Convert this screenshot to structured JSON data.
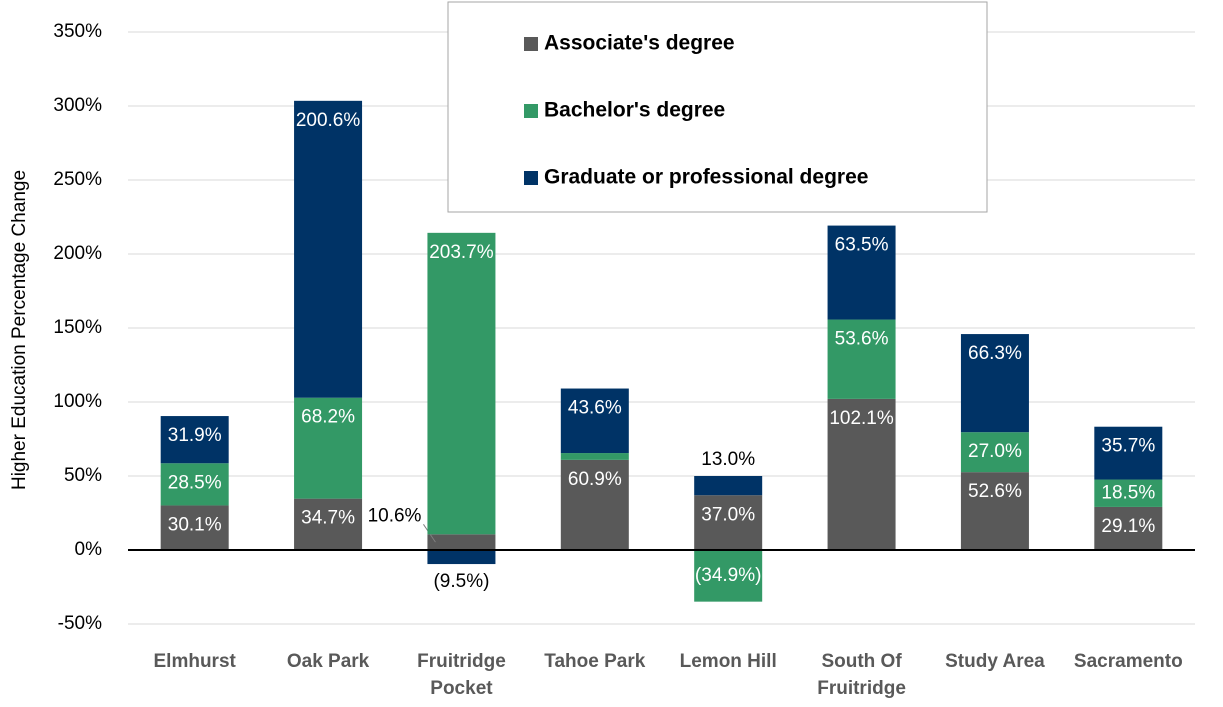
{
  "chart_data": {
    "type": "bar",
    "stacked": true,
    "y_label": "Higher Education Percentage Change",
    "categories": [
      "Elmhurst",
      "Oak Park",
      "Fruitridge Pocket",
      "Tahoe Park",
      "Lemon Hill",
      "South Of Fruitridge",
      "Study Area",
      "Sacramento"
    ],
    "series": [
      {
        "name": "Associate's degree",
        "color": "#595959",
        "values": [
          30.1,
          34.7,
          10.6,
          60.9,
          37.0,
          102.1,
          52.6,
          29.1
        ],
        "value_labels": [
          "30.1%",
          "34.7%",
          "10.6%",
          "60.9%",
          "37.0%",
          "102.1%",
          "52.6%",
          "29.1%"
        ]
      },
      {
        "name": "Bachelor's degree",
        "color": "#339966",
        "values": [
          28.5,
          68.2,
          203.7,
          4.6,
          -34.9,
          53.6,
          27.0,
          18.5
        ],
        "value_labels": [
          "28.5%",
          "68.2%",
          "203.7%",
          null,
          "(34.9%)",
          "53.6%",
          "27.0%",
          "18.5%"
        ]
      },
      {
        "name": "Graduate or professional degree",
        "color": "#003366",
        "values": [
          31.9,
          200.6,
          -9.5,
          43.6,
          13.0,
          63.5,
          66.3,
          35.7
        ],
        "value_labels": [
          "31.9%",
          "200.6%",
          "(9.5%)",
          "43.6%",
          "13.0%",
          "63.5%",
          "66.3%",
          "35.7%"
        ]
      }
    ],
    "ylim": [
      -50,
      350
    ],
    "yticks": [
      {
        "value": -50,
        "label": "-50%"
      },
      {
        "value": 0,
        "label": "0%"
      },
      {
        "value": 50,
        "label": "50%"
      },
      {
        "value": 100,
        "label": "100%"
      },
      {
        "value": 150,
        "label": "150%"
      },
      {
        "value": 200,
        "label": "200%"
      },
      {
        "value": 250,
        "label": "250%"
      },
      {
        "value": 300,
        "label": "300%"
      },
      {
        "value": 350,
        "label": "350%"
      }
    ],
    "grid": true,
    "legend": "top"
  }
}
